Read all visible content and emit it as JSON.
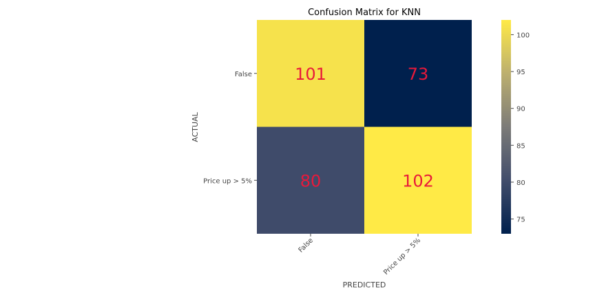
{
  "chart_data": {
    "type": "heatmap",
    "title": "Confusion Matrix for KNN",
    "xlabel": "PREDICTED",
    "ylabel": "ACTUAL",
    "x_categories": [
      "False",
      "Price up > 5%"
    ],
    "y_categories": [
      "False",
      "Price up > 5%"
    ],
    "values": [
      [
        101,
        73
      ],
      [
        80,
        102
      ]
    ],
    "colormap": "cividis",
    "color_range": [
      73,
      102
    ],
    "colorbar_ticks": [
      75,
      80,
      85,
      90,
      95,
      100
    ],
    "annotation_color": "#e8193a"
  }
}
